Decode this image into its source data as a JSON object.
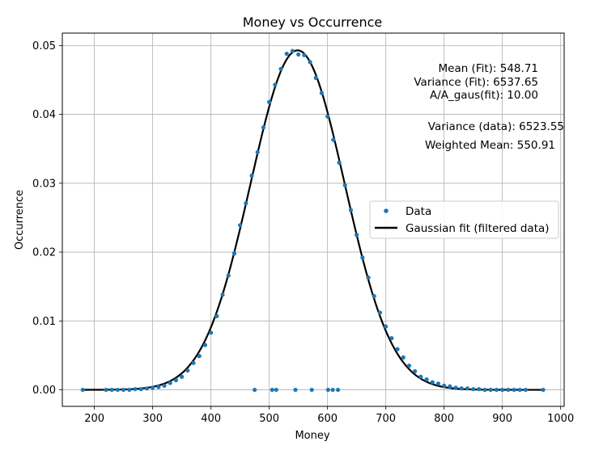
{
  "chart_data": {
    "type": "scatter",
    "title": "Money vs Occurrence",
    "xlabel": "Money",
    "ylabel": "Occurrence",
    "xlim": [
      145,
      1006
    ],
    "ylim": [
      -0.0024,
      0.0518
    ],
    "xticks": [
      200,
      300,
      400,
      500,
      600,
      700,
      800,
      900,
      1000
    ],
    "yticks": [
      0.0,
      0.01,
      0.02,
      0.03,
      0.04,
      0.05
    ],
    "ytick_labels": [
      "0.00",
      "0.01",
      "0.02",
      "0.03",
      "0.04",
      "0.05"
    ],
    "grid": true,
    "legend_position": "center-right",
    "series": [
      {
        "name": "Data",
        "kind": "scatter",
        "color": "#1f77b4",
        "x": [
          180,
          220,
          230,
          240,
          250,
          260,
          270,
          280,
          290,
          300,
          310,
          320,
          330,
          340,
          350,
          360,
          370,
          380,
          390,
          400,
          410,
          420,
          430,
          440,
          450,
          460,
          470,
          480,
          490,
          500,
          510,
          520,
          530,
          540,
          550,
          560,
          570,
          580,
          590,
          600,
          610,
          620,
          630,
          640,
          650,
          660,
          670,
          680,
          690,
          700,
          710,
          720,
          730,
          740,
          750,
          760,
          770,
          780,
          790,
          800,
          810,
          820,
          830,
          840,
          850,
          860,
          870,
          880,
          890,
          900,
          910,
          920,
          930,
          940,
          970,
          475,
          505,
          512,
          545,
          573,
          601,
          609,
          618
        ],
        "y": [
          0.0,
          0.0,
          0.0,
          0.0,
          0.0,
          0.0,
          0.0001,
          0.0001,
          0.0002,
          0.0003,
          0.0004,
          0.0006,
          0.001,
          0.0014,
          0.0019,
          0.0028,
          0.0039,
          0.0049,
          0.0065,
          0.0083,
          0.0107,
          0.0138,
          0.0166,
          0.0198,
          0.0239,
          0.0271,
          0.0311,
          0.0345,
          0.0381,
          0.0418,
          0.0443,
          0.0466,
          0.0488,
          0.0492,
          0.0487,
          0.0486,
          0.0476,
          0.0453,
          0.0431,
          0.0397,
          0.0363,
          0.033,
          0.0297,
          0.0261,
          0.0225,
          0.0192,
          0.0163,
          0.0136,
          0.0112,
          0.0092,
          0.0075,
          0.0059,
          0.0047,
          0.0035,
          0.0027,
          0.0019,
          0.0015,
          0.0011,
          0.0009,
          0.0006,
          0.0005,
          0.0003,
          0.0002,
          0.0002,
          0.0001,
          0.0001,
          0.0,
          0.0,
          0.0,
          0.0,
          0.0,
          0.0,
          0.0,
          0.0,
          0.0,
          0.0,
          0.0,
          0.0,
          0.0,
          0.0,
          0.0,
          0.0,
          0.0
        ]
      },
      {
        "name": "Gaussian fit (filtered data)",
        "kind": "line",
        "color": "#000000",
        "mean": 548.71,
        "variance": 6537.65,
        "amplitude": 0.0493,
        "x_range": [
          180,
          970
        ]
      }
    ],
    "annotations": {
      "mean_fit": "Mean (Fit): 548.71",
      "variance_fit": "Variance (Fit): 6537.65",
      "a_ratio": "A/A_gaus(fit): 10.00",
      "variance_data": "Variance (data): 6523.55",
      "weighted_mean": "Weighted Mean: 550.91"
    }
  }
}
